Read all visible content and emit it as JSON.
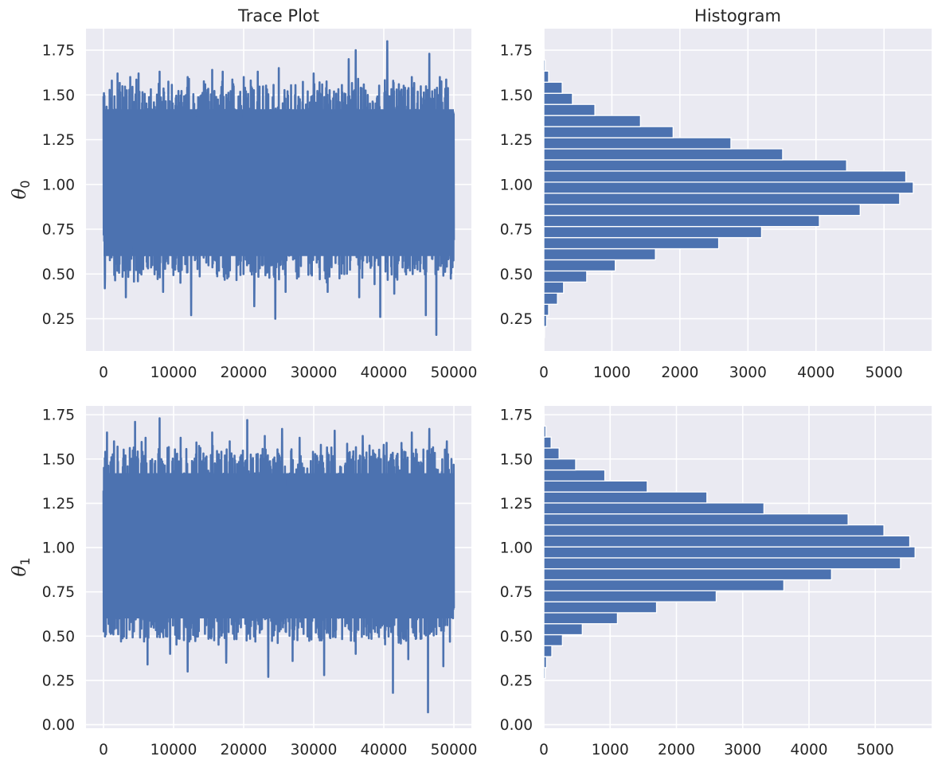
{
  "chart_data": [
    {
      "id": "trace0",
      "type": "line",
      "title": "Trace Plot",
      "ylabel": "θ",
      "ylabel_subscript": "0",
      "xlim": [
        -2500,
        52500
      ],
      "ylim": [
        0.07,
        1.87
      ],
      "xticks": [
        0,
        10000,
        20000,
        30000,
        40000,
        50000
      ],
      "yticks": [
        0.25,
        0.5,
        0.75,
        1.0,
        1.25,
        1.5,
        1.75
      ],
      "grid": true,
      "color": "#4c72b0",
      "n_samples": 50000,
      "band": {
        "low": 0.6,
        "high": 1.42
      },
      "peaks_high": [
        [
          1200,
          1.58
        ],
        [
          2000,
          1.62
        ],
        [
          3800,
          1.6
        ],
        [
          5000,
          1.62
        ],
        [
          8000,
          1.63
        ],
        [
          12000,
          1.6
        ],
        [
          15500,
          1.64
        ],
        [
          17000,
          1.63
        ],
        [
          20000,
          1.6
        ],
        [
          22000,
          1.63
        ],
        [
          25000,
          1.65
        ],
        [
          30000,
          1.62
        ],
        [
          35000,
          1.7
        ],
        [
          36000,
          1.75
        ],
        [
          40500,
          1.8
        ],
        [
          44000,
          1.6
        ],
        [
          46500,
          1.73
        ],
        [
          48000,
          1.6
        ]
      ],
      "peaks_low": [
        [
          200,
          0.42
        ],
        [
          3200,
          0.37
        ],
        [
          5000,
          0.27
        ],
        [
          8500,
          0.4
        ],
        [
          12500,
          0.27
        ],
        [
          17000,
          0.33
        ],
        [
          21500,
          0.32
        ],
        [
          24500,
          0.25
        ],
        [
          26000,
          0.4
        ],
        [
          32000,
          0.4
        ],
        [
          36500,
          0.37
        ],
        [
          39500,
          0.26
        ],
        [
          41500,
          0.39
        ],
        [
          44000,
          0.3
        ],
        [
          46000,
          0.27
        ],
        [
          47500,
          0.16
        ]
      ]
    },
    {
      "id": "hist0",
      "type": "bar",
      "orientation": "horizontal",
      "title": "Histogram",
      "xlim": [
        0,
        5700
      ],
      "ylim": [
        0.07,
        1.87
      ],
      "xticks": [
        0,
        1000,
        2000,
        3000,
        4000,
        5000
      ],
      "yticks": [
        0.25,
        0.5,
        0.75,
        1.0,
        1.25,
        1.5,
        1.75
      ],
      "grid": true,
      "color": "#4c72b0",
      "bin_start": 0.145,
      "bin_width": 0.062,
      "counts": [
        10,
        40,
        70,
        200,
        290,
        630,
        1050,
        1640,
        2570,
        3200,
        4050,
        4650,
        5230,
        5430,
        5320,
        4450,
        3510,
        2750,
        1900,
        1420,
        750,
        420,
        270,
        70,
        20,
        5
      ]
    },
    {
      "id": "trace1",
      "type": "line",
      "title": "",
      "ylabel": "θ",
      "ylabel_subscript": "1",
      "xlim": [
        -2500,
        52500
      ],
      "ylim": [
        -0.02,
        1.8
      ],
      "xticks": [
        0,
        10000,
        20000,
        30000,
        40000,
        50000
      ],
      "yticks": [
        0.0,
        0.25,
        0.5,
        0.75,
        1.0,
        1.25,
        1.5,
        1.75
      ],
      "grid": true,
      "color": "#4c72b0",
      "n_samples": 50000,
      "band": {
        "low": 0.6,
        "high": 1.42
      },
      "peaks_high": [
        [
          500,
          1.65
        ],
        [
          1500,
          1.6
        ],
        [
          4500,
          1.71
        ],
        [
          6000,
          1.62
        ],
        [
          8000,
          1.73
        ],
        [
          11000,
          1.62
        ],
        [
          15500,
          1.65
        ],
        [
          18000,
          1.6
        ],
        [
          20500,
          1.72
        ],
        [
          23000,
          1.63
        ],
        [
          25500,
          1.67
        ],
        [
          28000,
          1.62
        ],
        [
          33000,
          1.66
        ],
        [
          37000,
          1.63
        ],
        [
          40000,
          1.58
        ],
        [
          44000,
          1.65
        ],
        [
          46500,
          1.67
        ],
        [
          49000,
          1.6
        ]
      ],
      "peaks_low": [
        [
          300,
          0.62
        ],
        [
          2500,
          0.47
        ],
        [
          6300,
          0.34
        ],
        [
          9500,
          0.4
        ],
        [
          12000,
          0.3
        ],
        [
          17500,
          0.35
        ],
        [
          23500,
          0.27
        ],
        [
          27000,
          0.36
        ],
        [
          31500,
          0.28
        ],
        [
          36000,
          0.4
        ],
        [
          41300,
          0.18
        ],
        [
          43500,
          0.37
        ],
        [
          46300,
          0.07
        ],
        [
          48500,
          0.33
        ]
      ]
    },
    {
      "id": "hist1",
      "type": "bar",
      "orientation": "horizontal",
      "title": "",
      "xlim": [
        0,
        5850
      ],
      "ylim": [
        -0.02,
        1.8
      ],
      "xticks": [
        0,
        1000,
        2000,
        3000,
        4000,
        5000
      ],
      "yticks": [
        0.0,
        0.25,
        0.5,
        0.75,
        1.0,
        1.25,
        1.5,
        1.75
      ],
      "grid": true,
      "color": "#4c72b0",
      "bin_start": 0.26,
      "bin_width": 0.062,
      "counts": [
        20,
        40,
        120,
        280,
        580,
        1110,
        1700,
        2600,
        3620,
        4340,
        5380,
        5600,
        5520,
        5130,
        4590,
        3320,
        2460,
        1560,
        920,
        480,
        230,
        110,
        30,
        5
      ]
    }
  ]
}
